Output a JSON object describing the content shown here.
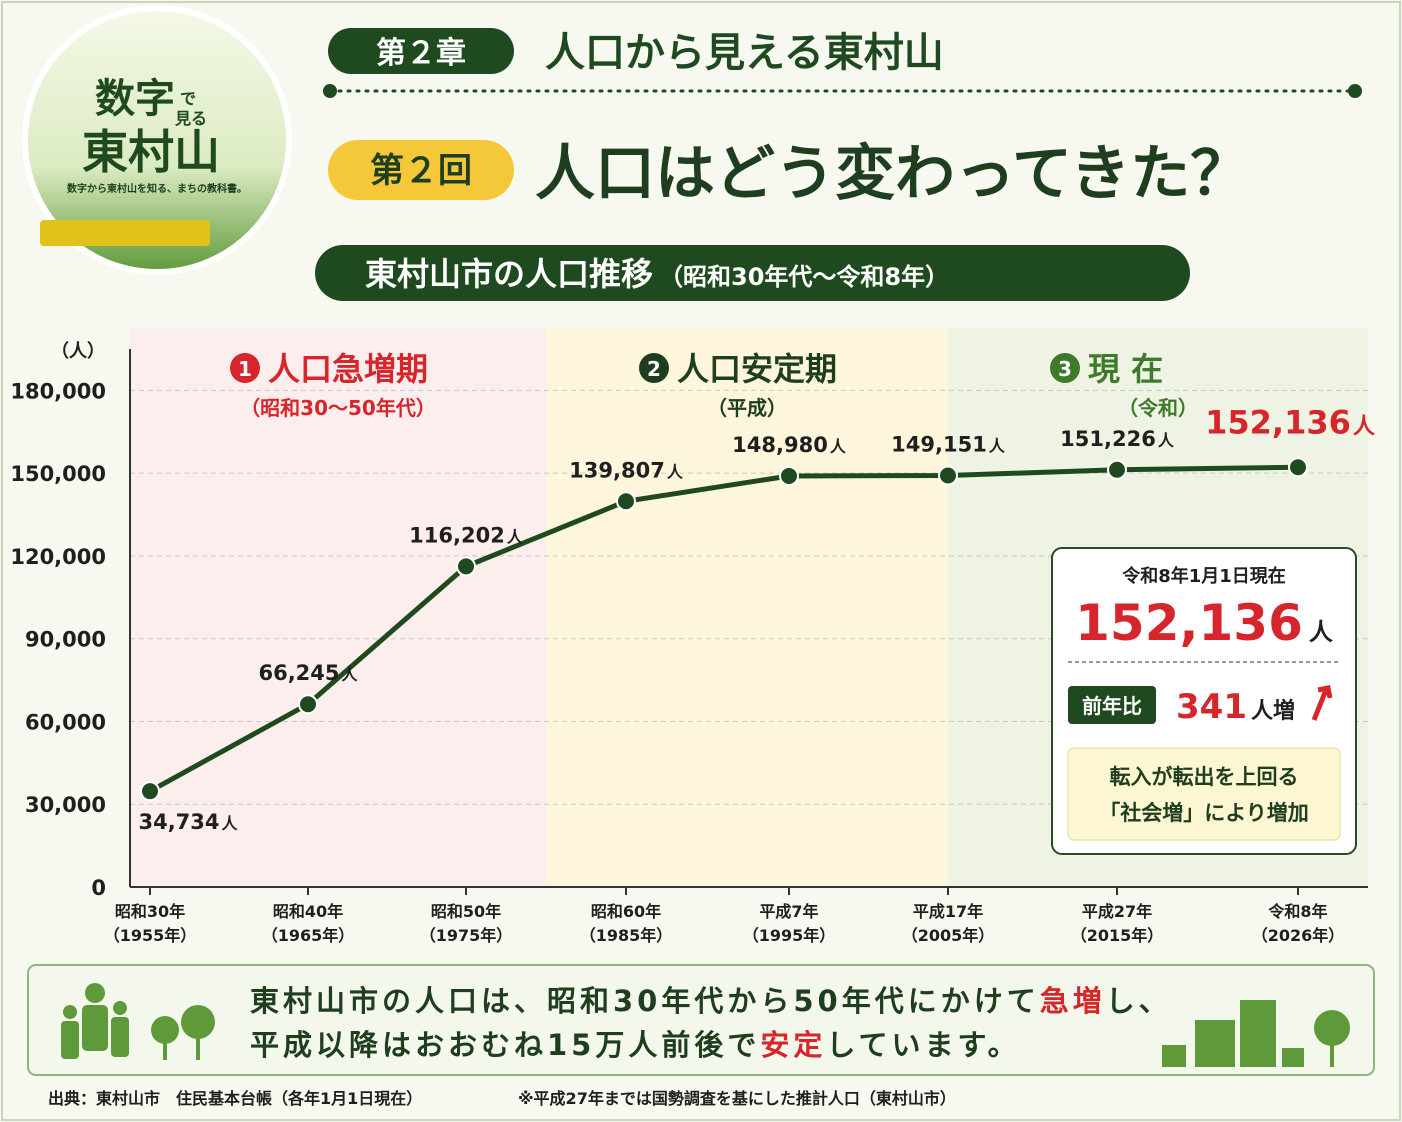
{
  "logo": {
    "title_a": "数字",
    "title_de": "で",
    "title_miru": "見る",
    "title_b": "東村山",
    "tagline": "数字から東村山を知る、まちの教科書。"
  },
  "header": {
    "chapter": "第２章",
    "chapter_title": "人口から見える東村山",
    "episode": "第２回",
    "episode_title": "人口はどう変わってきた？",
    "banner": "東村山市の人口推移",
    "banner_sub": "（昭和30年代～令和8年）"
  },
  "chart_data": {
    "type": "line",
    "y_unit_label": "（人）",
    "unit": "人",
    "categories": [
      "昭和30年",
      "昭和40年",
      "昭和50年",
      "昭和60年",
      "平成7年",
      "平成17年",
      "平成27年",
      "令和8年"
    ],
    "category_years": [
      "（1955年）",
      "（1965年）",
      "（1975年）",
      "（1985年）",
      "（1995年）",
      "（2005年）",
      "（2015年）",
      "（2026年）"
    ],
    "series": [
      {
        "name": "人口",
        "color": "#1f4a1f",
        "values": [
          34734,
          66245,
          116202,
          139807,
          148980,
          149151,
          151226,
          152136
        ],
        "value_labels": [
          "34,734",
          "66,245",
          "116,202",
          "139,807",
          "148,980",
          "149,151",
          "151,226",
          "152,136"
        ]
      }
    ],
    "highlight_color": "#d7262b",
    "ylim": [
      0,
      195000
    ],
    "yticks": [
      {
        "value": 0,
        "label": "0"
      },
      {
        "value": 30000,
        "label": "30,000"
      },
      {
        "value": 60000,
        "label": "60,000"
      },
      {
        "value": 90000,
        "label": "90,000"
      },
      {
        "value": 120000,
        "label": "120,000"
      },
      {
        "value": 150000,
        "label": "150,000"
      },
      {
        "value": 180000,
        "label": "180,000"
      }
    ],
    "grid": true,
    "periods": [
      {
        "number": "1",
        "title": "人口急増期",
        "sub": "（昭和30～50年代）",
        "color": "#fdeeee",
        "title_color": "#d7262b"
      },
      {
        "number": "2",
        "title": "人口安定期",
        "sub": "（平成）",
        "color": "#fdf6dc",
        "title_color": "#1f3d1f"
      },
      {
        "number": "3",
        "title": "現 在",
        "sub": "（令和）",
        "color": "#eef3e4",
        "title_color": "#3f7a2a"
      }
    ]
  },
  "info_box": {
    "date": "令和8年1月1日現在",
    "value": "152,136",
    "unit": "人",
    "compare_label": "前年比",
    "change": "341",
    "change_unit": "人増",
    "note_1": "転入が転出を上回る",
    "note_2": "「社会増」により増加"
  },
  "summary": {
    "line_1": [
      {
        "text": "東村山市の人口は、昭和30年代から50年代にかけて"
      },
      {
        "text": "急増",
        "color": "#d7262b"
      },
      {
        "text": "し、"
      }
    ],
    "line_2": [
      {
        "text": "平成以降はおおむね15万人前後で"
      },
      {
        "text": "安定",
        "color": "#d7262b"
      },
      {
        "text": "しています。"
      }
    ]
  },
  "source": {
    "main": "出典：東村山市　住民基本台帳（各年1月1日現在）",
    "note": "※平成27年までは国勢調査を基にした推計人口（東村山市）"
  }
}
